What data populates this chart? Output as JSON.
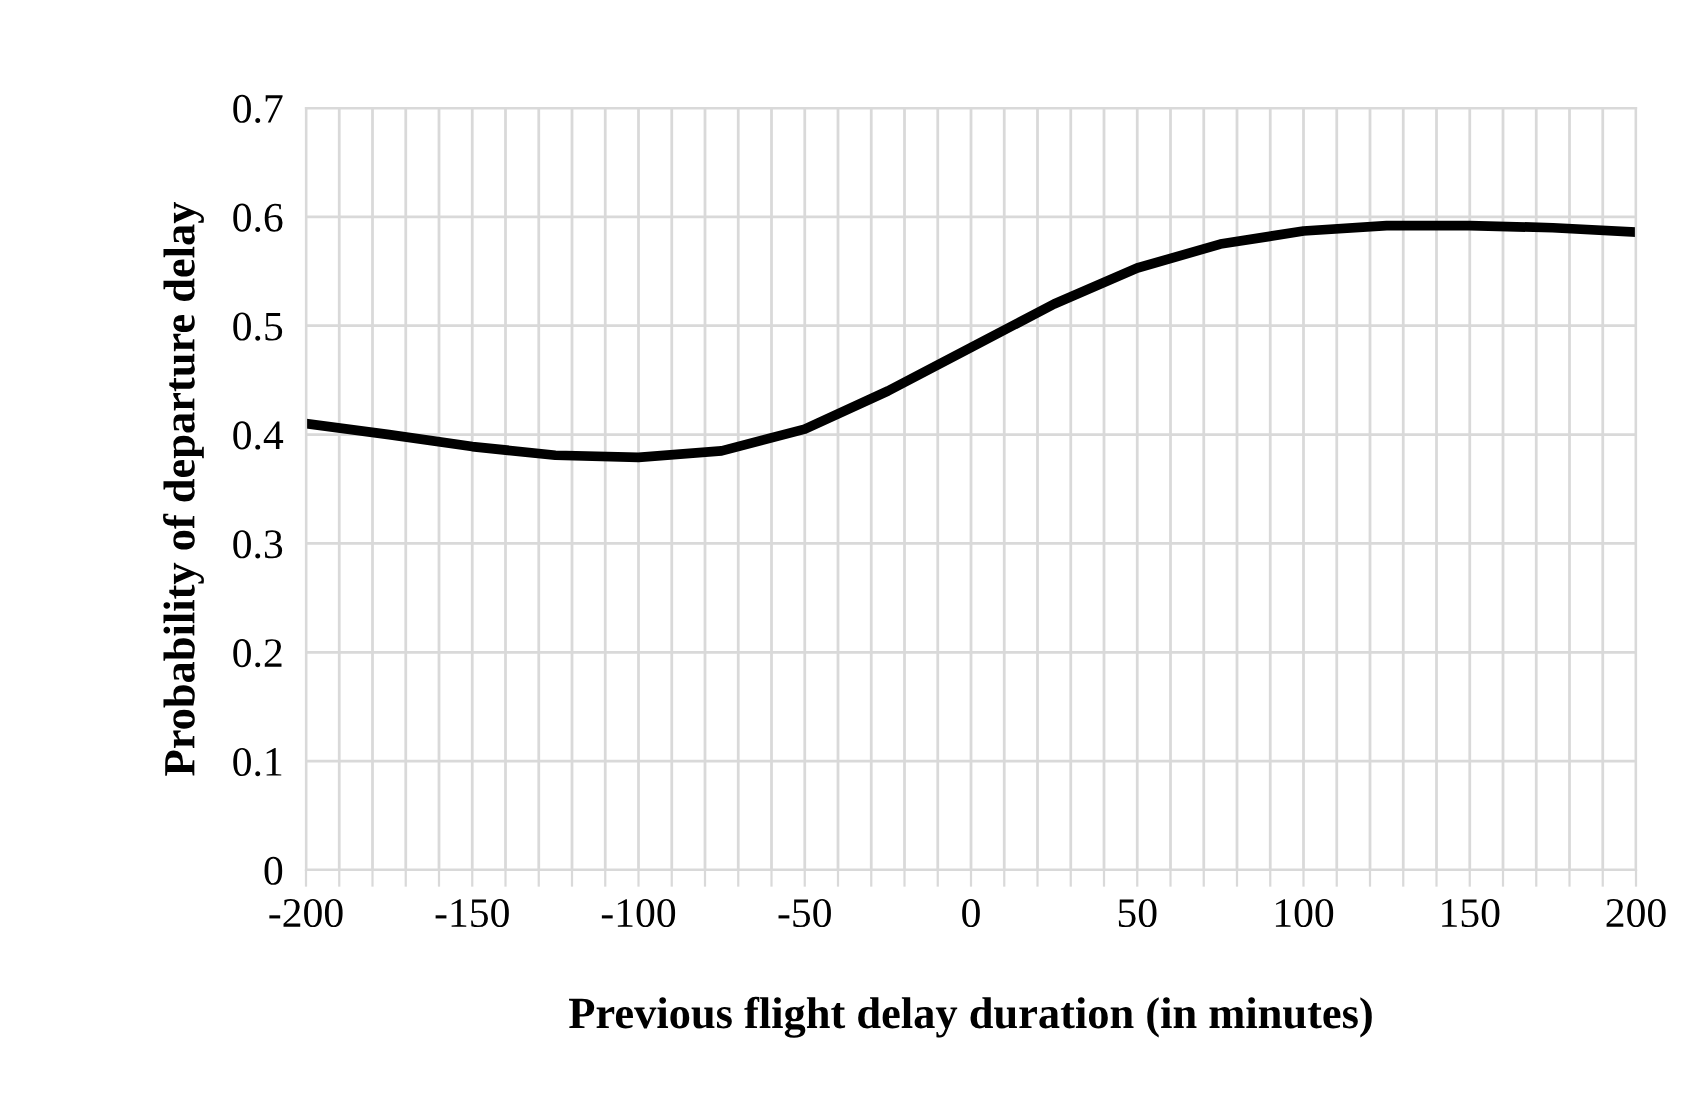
{
  "chart_data": {
    "type": "line",
    "xlabel": "Previous flight delay duration (in minutes)",
    "ylabel": "Probability of departure delay",
    "x": [
      -200,
      -175,
      -150,
      -125,
      -100,
      -75,
      -50,
      -25,
      0,
      25,
      50,
      75,
      100,
      125,
      150,
      175,
      200
    ],
    "series": [
      {
        "color": "#000000",
        "values": [
          0.41,
          0.4,
          0.389,
          0.381,
          0.379,
          0.385,
          0.405,
          0.44,
          0.48,
          0.52,
          0.553,
          0.575,
          0.587,
          0.592,
          0.592,
          0.59,
          0.586
        ]
      }
    ],
    "xlim": [
      -200,
      200
    ],
    "ylim": [
      0,
      0.7
    ],
    "xticks": [
      -200,
      {
        "value": -190,
        "label": null
      },
      {
        "value": -180,
        "label": null
      },
      {
        "value": -170,
        "label": null
      },
      {
        "value": -160,
        "label": null
      },
      -150,
      {
        "value": -140,
        "label": null
      },
      {
        "value": -130,
        "label": null
      },
      {
        "value": -120,
        "label": null
      },
      {
        "value": -110,
        "label": null
      },
      -100,
      {
        "value": -90,
        "label": null
      },
      {
        "value": -80,
        "label": null
      },
      {
        "value": -70,
        "label": null
      },
      {
        "value": -60,
        "label": null
      },
      -50,
      {
        "value": -40,
        "label": null
      },
      {
        "value": -30,
        "label": null
      },
      {
        "value": -20,
        "label": null
      },
      {
        "value": -10,
        "label": null
      },
      0,
      {
        "value": 10,
        "label": null
      },
      {
        "value": 20,
        "label": null
      },
      {
        "value": 30,
        "label": null
      },
      {
        "value": 40,
        "label": null
      },
      50,
      {
        "value": 60,
        "label": null
      },
      {
        "value": 70,
        "label": null
      },
      {
        "value": 80,
        "label": null
      },
      {
        "value": 90,
        "label": null
      },
      100,
      {
        "value": 110,
        "label": null
      },
      {
        "value": 120,
        "label": null
      },
      {
        "value": 130,
        "label": null
      },
      {
        "value": 140,
        "label": null
      },
      150,
      {
        "value": 160,
        "label": null
      },
      {
        "value": 170,
        "label": null
      },
      {
        "value": 180,
        "label": null
      },
      {
        "value": 190,
        "label": null
      },
      200
    ],
    "yticks": [
      0,
      0.1,
      0.2,
      0.3,
      0.4,
      0.5,
      0.6,
      0.7
    ],
    "grid": true,
    "legend": false,
    "marker": "none",
    "line_style": "solid"
  }
}
